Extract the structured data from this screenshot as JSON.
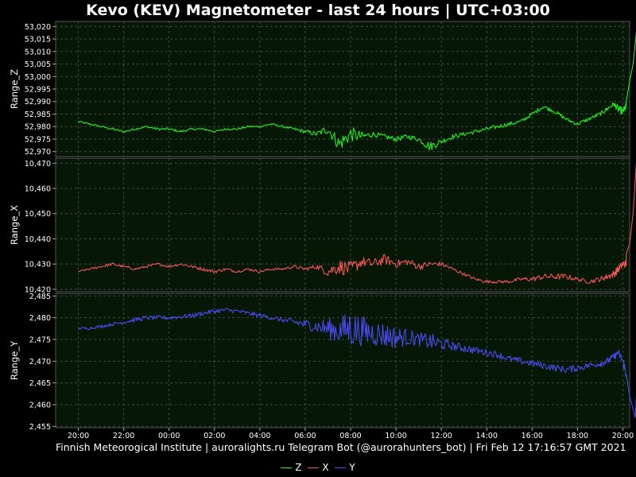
{
  "title": "Kevo (KEV) Magnetometer - last 24 hours | UTC+03:00",
  "source_text": "Finnish Meteorogical Institute | auroralights.ru Telegram Bot (@aurorahunters_bot) | Fri Feb 12 17:16:57 GMT 2021",
  "colors": {
    "background": "#000000",
    "plot_background": "#061706",
    "grid": "#3a4a3a",
    "Z": "#22ee22",
    "X": "#ee5555",
    "Y": "#4a4aee"
  },
  "chart_data": {
    "type": "line",
    "shared_x": {
      "unit": "hours since 20:00 (UTC+03:00)",
      "range": [
        -1.0,
        24.3
      ],
      "tick_values": [
        0,
        2,
        4,
        6,
        8,
        10,
        12,
        14,
        16,
        18,
        20,
        22,
        24
      ],
      "tick_labels": [
        "20:00",
        "22:00",
        "00:00",
        "02:00",
        "04:00",
        "06:00",
        "08:00",
        "10:00",
        "12:00",
        "14:00",
        "16:00",
        "18:00",
        "20:00"
      ]
    },
    "grid": true,
    "legend_position": "bottom-center",
    "panels": [
      {
        "name": "Z",
        "ylabel": "Range_Z",
        "ylim": [
          52968,
          53022
        ],
        "y_ticks": [
          52970,
          52975,
          52980,
          52985,
          52990,
          52995,
          53000,
          53005,
          53010,
          53015,
          53020
        ],
        "y_tick_labels": [
          "52,970",
          "52,975",
          "52,980",
          "52,985",
          "52,990",
          "52,995",
          "53,000",
          "53,005",
          "53,010",
          "53,015",
          "53,020"
        ],
        "x": [
          0,
          0.5,
          1,
          1.5,
          2,
          2.5,
          3,
          3.5,
          4,
          4.5,
          5,
          5.5,
          6,
          6.5,
          7,
          7.5,
          8,
          8.5,
          9,
          9.5,
          10,
          10.5,
          11,
          11.5,
          12,
          12.5,
          13,
          13.5,
          14,
          14.5,
          15,
          15.5,
          16,
          16.5,
          17,
          17.5,
          18,
          18.5,
          19,
          19.5,
          20,
          20.5,
          21,
          21.5,
          22,
          22.5,
          23,
          23.3,
          23.6,
          23.8,
          24,
          24.15
        ],
        "values": [
          52982,
          52981,
          52980,
          52979,
          52978,
          52979,
          52980,
          52979,
          52979,
          52978,
          52979,
          52979,
          52978,
          52979,
          52979,
          52980,
          52980,
          52981,
          52980,
          52979,
          52978,
          52977,
          52979,
          52973,
          52977,
          52976,
          52977,
          52976,
          52975,
          52976,
          52975,
          52972,
          52974,
          52976,
          52977,
          52978,
          52979,
          52980,
          52981,
          52982,
          52985,
          52988,
          52986,
          52983,
          52981,
          52983,
          52985,
          52987,
          52989,
          52987,
          52986,
          52988
        ],
        "noise": [
          0.4,
          0.4,
          0.4,
          0.5,
          0.4,
          0.4,
          0.4,
          0.5,
          0.5,
          0.5,
          0.4,
          0.4,
          0.4,
          0.4,
          0.4,
          0.4,
          0.4,
          0.4,
          0.4,
          0.6,
          0.8,
          1.0,
          2.0,
          3.0,
          3.0,
          2.0,
          1.0,
          1.0,
          1.0,
          1.0,
          1.0,
          2.0,
          1.0,
          1.0,
          0.8,
          0.8,
          0.8,
          0.8,
          0.8,
          0.8,
          0.8,
          0.8,
          0.8,
          0.8,
          0.8,
          0.8,
          0.8,
          0.8,
          1.0,
          1.5,
          1.5,
          1.5
        ],
        "end_values": [
          [
            24.15,
            52990
          ],
          [
            24.3,
            52998
          ],
          [
            24.45,
            53005
          ],
          [
            24.6,
            53018
          ]
        ]
      },
      {
        "name": "X",
        "ylabel": "Range_X",
        "ylim": [
          10419,
          10472
        ],
        "y_ticks": [
          10420,
          10430,
          10440,
          10450,
          10460,
          10470
        ],
        "y_tick_labels": [
          "10,420",
          "10,430",
          "10,440",
          "10,450",
          "10,460",
          "10,470"
        ],
        "x": [
          0,
          0.5,
          1,
          1.5,
          2,
          2.5,
          3,
          3.5,
          4,
          4.5,
          5,
          5.5,
          6,
          6.5,
          7,
          7.5,
          8,
          8.5,
          9,
          9.5,
          10,
          10.5,
          11,
          11.5,
          12,
          12.5,
          13,
          13.5,
          14,
          14.5,
          15,
          15.5,
          16,
          16.5,
          17,
          17.5,
          18,
          18.5,
          19,
          19.5,
          20,
          20.5,
          21,
          21.5,
          22,
          22.5,
          23,
          23.3,
          23.6,
          23.8,
          24,
          24.15
        ],
        "values": [
          10427,
          10428,
          10429,
          10430,
          10429,
          10428,
          10429,
          10430,
          10429,
          10430,
          10429,
          10428,
          10427,
          10428,
          10427,
          10428,
          10427,
          10428,
          10428,
          10429,
          10428,
          10429,
          10427,
          10429,
          10428,
          10431,
          10430,
          10432,
          10430,
          10431,
          10429,
          10430,
          10430,
          10428,
          10426,
          10424,
          10423,
          10423,
          10423,
          10424,
          10424,
          10425,
          10425,
          10425,
          10424,
          10423,
          10424,
          10425,
          10426,
          10428,
          10430,
          10430
        ],
        "noise": [
          0.4,
          0.4,
          0.5,
          0.6,
          0.5,
          0.5,
          0.5,
          0.5,
          0.5,
          0.5,
          0.6,
          0.7,
          0.7,
          0.6,
          0.5,
          0.5,
          0.5,
          0.5,
          0.5,
          0.6,
          0.7,
          1.0,
          2.0,
          3.0,
          3.0,
          2.0,
          2.0,
          2.0,
          1.5,
          1.5,
          1.5,
          1.0,
          1.0,
          0.8,
          0.6,
          0.6,
          0.6,
          0.6,
          0.6,
          0.8,
          1.0,
          1.2,
          1.2,
          1.2,
          0.8,
          0.8,
          1.0,
          1.2,
          1.5,
          1.5,
          1.5,
          1.5
        ],
        "end_values": [
          [
            24.15,
            10434
          ],
          [
            24.3,
            10438
          ],
          [
            24.45,
            10450
          ],
          [
            24.6,
            10471
          ]
        ]
      },
      {
        "name": "Y",
        "ylabel": "Range_Y",
        "ylim": [
          2454.7,
          2485.6
        ],
        "y_ticks": [
          2455,
          2460,
          2465,
          2470,
          2475,
          2480,
          2485
        ],
        "y_tick_labels": [
          "2,455",
          "2,460",
          "2,465",
          "2,470",
          "2,475",
          "2,480",
          "2,485"
        ],
        "x": [
          0,
          0.5,
          1,
          1.5,
          2,
          2.5,
          3,
          3.5,
          4,
          4.5,
          5,
          5.5,
          6,
          6.5,
          7,
          7.5,
          8,
          8.5,
          9,
          9.5,
          10,
          10.5,
          11,
          11.5,
          12,
          12.5,
          13,
          13.5,
          14,
          14.5,
          15,
          15.5,
          16,
          16.5,
          17,
          17.5,
          18,
          18.5,
          19,
          19.5,
          20,
          20.5,
          21,
          21.5,
          22,
          22.5,
          23,
          23.3,
          23.6,
          23.8,
          24,
          24.15
        ],
        "values": [
          2477.5,
          2477.6,
          2478.0,
          2478.5,
          2479.0,
          2479.5,
          2480.0,
          2480.0,
          2480.0,
          2480.2,
          2480.5,
          2481.0,
          2481.5,
          2481.8,
          2481.5,
          2481.0,
          2480.5,
          2480.0,
          2479.5,
          2479.0,
          2478.5,
          2478.0,
          2477.5,
          2477.0,
          2477.5,
          2477.0,
          2476.5,
          2476.0,
          2475.5,
          2475.5,
          2475.0,
          2474.5,
          2474.0,
          2473.5,
          2473.0,
          2472.5,
          2472.0,
          2471.5,
          2470.5,
          2470.0,
          2469.5,
          2469.0,
          2468.5,
          2468.0,
          2468.5,
          2469.0,
          2469.5,
          2470.0,
          2471.0,
          2472.0,
          2470.0,
          2467.0
        ],
        "noise": [
          0.3,
          0.3,
          0.4,
          0.4,
          0.5,
          0.5,
          0.5,
          0.5,
          0.5,
          0.5,
          0.5,
          0.5,
          0.5,
          0.5,
          0.5,
          0.5,
          0.5,
          0.5,
          0.6,
          0.8,
          1.2,
          1.5,
          2.5,
          3.0,
          4.5,
          3.5,
          3.0,
          3.0,
          2.5,
          2.0,
          1.5,
          2.0,
          1.5,
          1.0,
          1.0,
          0.8,
          0.8,
          0.8,
          0.8,
          0.8,
          0.8,
          0.8,
          0.8,
          0.8,
          0.8,
          0.8,
          0.8,
          0.8,
          0.8,
          0.8,
          1.0,
          1.5
        ],
        "end_values": [
          [
            24.15,
            2467.0
          ],
          [
            24.3,
            2462.0
          ],
          [
            24.45,
            2459.0
          ],
          [
            24.55,
            2457.0
          ],
          [
            24.6,
            2462.5
          ]
        ]
      }
    ]
  },
  "legend": [
    {
      "name": "Z",
      "color": "#22ee22"
    },
    {
      "name": "X",
      "color": "#ee5555"
    },
    {
      "name": "Y",
      "color": "#4a4aee"
    }
  ]
}
